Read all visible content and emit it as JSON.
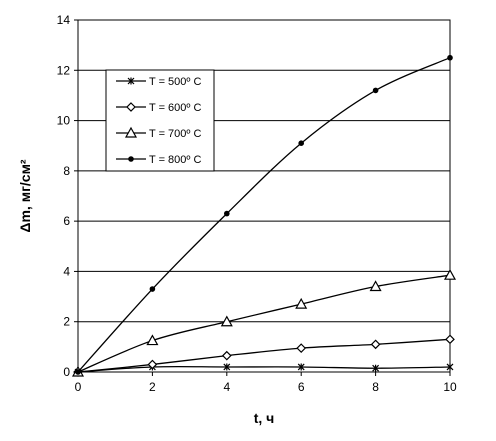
{
  "chart_data": {
    "type": "line",
    "title": "",
    "xlabel": "t, ч",
    "ylabel": "Δm, мг/см²",
    "xlim": [
      0,
      10
    ],
    "ylim": [
      0,
      14
    ],
    "x_ticks": [
      0,
      2,
      4,
      6,
      8,
      10
    ],
    "y_ticks": [
      0,
      2,
      4,
      6,
      8,
      10,
      12,
      14
    ],
    "grid": "horizontal major lines",
    "legend_position": "top-left",
    "x": [
      0,
      2,
      4,
      6,
      8,
      10
    ],
    "series": [
      {
        "name": "T = 500º C",
        "marker": "x",
        "values": [
          0,
          0.2,
          0.2,
          0.2,
          0.15,
          0.2
        ]
      },
      {
        "name": "T = 600º C",
        "marker": "diamond",
        "values": [
          0,
          0.3,
          0.65,
          0.95,
          1.1,
          1.3
        ]
      },
      {
        "name": "T = 700º C",
        "marker": "triangle",
        "values": [
          0,
          1.25,
          2.0,
          2.7,
          3.4,
          3.85
        ]
      },
      {
        "name": "T = 800º C",
        "marker": "dot",
        "values": [
          0,
          3.3,
          6.3,
          9.1,
          11.2,
          12.5
        ]
      }
    ]
  }
}
